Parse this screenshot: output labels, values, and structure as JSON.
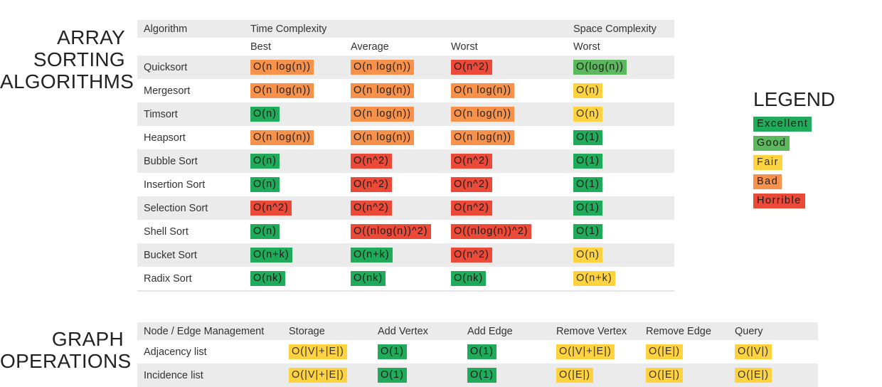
{
  "sorting": {
    "title_line1": "ARRAY",
    "title_line2": "SORTING",
    "title_line3": "ALGORITHMS",
    "headers": {
      "algorithm": "Algorithm",
      "time_complexity": "Time Complexity",
      "space_complexity": "Space Complexity",
      "best": "Best",
      "average": "Average",
      "worst": "Worst",
      "space_worst": "Worst"
    },
    "rows": [
      {
        "name": "Quicksort",
        "cells": [
          {
            "text": "O(n log(n))",
            "rating": "bad"
          },
          {
            "text": "O(n log(n))",
            "rating": "bad"
          },
          {
            "text": "O(n^2)",
            "rating": "horrible"
          },
          {
            "text": "O(log(n))",
            "rating": "good"
          }
        ]
      },
      {
        "name": "Mergesort",
        "cells": [
          {
            "text": "O(n log(n))",
            "rating": "bad"
          },
          {
            "text": "O(n log(n))",
            "rating": "bad"
          },
          {
            "text": "O(n log(n))",
            "rating": "bad"
          },
          {
            "text": "O(n)",
            "rating": "fair"
          }
        ]
      },
      {
        "name": "Timsort",
        "cells": [
          {
            "text": "O(n)",
            "rating": "excellent"
          },
          {
            "text": "O(n log(n))",
            "rating": "bad"
          },
          {
            "text": "O(n log(n))",
            "rating": "bad"
          },
          {
            "text": "O(n)",
            "rating": "fair"
          }
        ]
      },
      {
        "name": "Heapsort",
        "cells": [
          {
            "text": "O(n log(n))",
            "rating": "bad"
          },
          {
            "text": "O(n log(n))",
            "rating": "bad"
          },
          {
            "text": "O(n log(n))",
            "rating": "bad"
          },
          {
            "text": "O(1)",
            "rating": "excellent"
          }
        ]
      },
      {
        "name": "Bubble Sort",
        "cells": [
          {
            "text": "O(n)",
            "rating": "excellent"
          },
          {
            "text": "O(n^2)",
            "rating": "horrible"
          },
          {
            "text": "O(n^2)",
            "rating": "horrible"
          },
          {
            "text": "O(1)",
            "rating": "excellent"
          }
        ]
      },
      {
        "name": "Insertion Sort",
        "cells": [
          {
            "text": "O(n)",
            "rating": "excellent"
          },
          {
            "text": "O(n^2)",
            "rating": "horrible"
          },
          {
            "text": "O(n^2)",
            "rating": "horrible"
          },
          {
            "text": "O(1)",
            "rating": "excellent"
          }
        ]
      },
      {
        "name": "Selection Sort",
        "cells": [
          {
            "text": "O(n^2)",
            "rating": "horrible"
          },
          {
            "text": "O(n^2)",
            "rating": "horrible"
          },
          {
            "text": "O(n^2)",
            "rating": "horrible"
          },
          {
            "text": "O(1)",
            "rating": "excellent"
          }
        ]
      },
      {
        "name": "Shell Sort",
        "cells": [
          {
            "text": "O(n)",
            "rating": "excellent"
          },
          {
            "text": "O((nlog(n))^2)",
            "rating": "horrible"
          },
          {
            "text": "O((nlog(n))^2)",
            "rating": "horrible"
          },
          {
            "text": "O(1)",
            "rating": "excellent"
          }
        ]
      },
      {
        "name": "Bucket Sort",
        "cells": [
          {
            "text": "O(n+k)",
            "rating": "excellent"
          },
          {
            "text": "O(n+k)",
            "rating": "excellent"
          },
          {
            "text": "O(n^2)",
            "rating": "horrible"
          },
          {
            "text": "O(n)",
            "rating": "fair"
          }
        ]
      },
      {
        "name": "Radix Sort",
        "cells": [
          {
            "text": "O(nk)",
            "rating": "excellent"
          },
          {
            "text": "O(nk)",
            "rating": "excellent"
          },
          {
            "text": "O(nk)",
            "rating": "excellent"
          },
          {
            "text": "O(n+k)",
            "rating": "fair"
          }
        ]
      }
    ]
  },
  "graph": {
    "title_line1": "GRAPH",
    "title_line2": "OPERATIONS",
    "headers": [
      "Node / Edge Management",
      "Storage",
      "Add Vertex",
      "Add Edge",
      "Remove Vertex",
      "Remove Edge",
      "Query"
    ],
    "rows": [
      {
        "name": "Adjacency list",
        "cells": [
          {
            "text": "O(|V|+|E|)",
            "rating": "fair"
          },
          {
            "text": "O(1)",
            "rating": "excellent"
          },
          {
            "text": "O(1)",
            "rating": "excellent"
          },
          {
            "text": "O(|V|+|E|)",
            "rating": "fair"
          },
          {
            "text": "O(|E|)",
            "rating": "fair"
          },
          {
            "text": "O(|V|)",
            "rating": "fair"
          }
        ]
      },
      {
        "name": "Incidence list",
        "cells": [
          {
            "text": "O(|V|+|E|)",
            "rating": "fair"
          },
          {
            "text": "O(1)",
            "rating": "excellent"
          },
          {
            "text": "O(1)",
            "rating": "excellent"
          },
          {
            "text": "O(|E|)",
            "rating": "fair"
          },
          {
            "text": "O(|E|)",
            "rating": "fair"
          },
          {
            "text": "O(|E|)",
            "rating": "fair"
          }
        ]
      }
    ]
  },
  "legend": {
    "title": "LEGEND",
    "items": [
      {
        "label": "Excellent",
        "rating": "excellent"
      },
      {
        "label": "Good",
        "rating": "good"
      },
      {
        "label": "Fair",
        "rating": "fair"
      },
      {
        "label": "Bad",
        "rating": "bad"
      },
      {
        "label": "Horrible",
        "rating": "horrible"
      }
    ]
  },
  "colors": {
    "excellent": "#1fab5a",
    "good": "#5cb85c",
    "fair": "#ffd23f",
    "bad": "#f89149",
    "horrible": "#ea4a37",
    "row_shade": "#ebebec"
  }
}
